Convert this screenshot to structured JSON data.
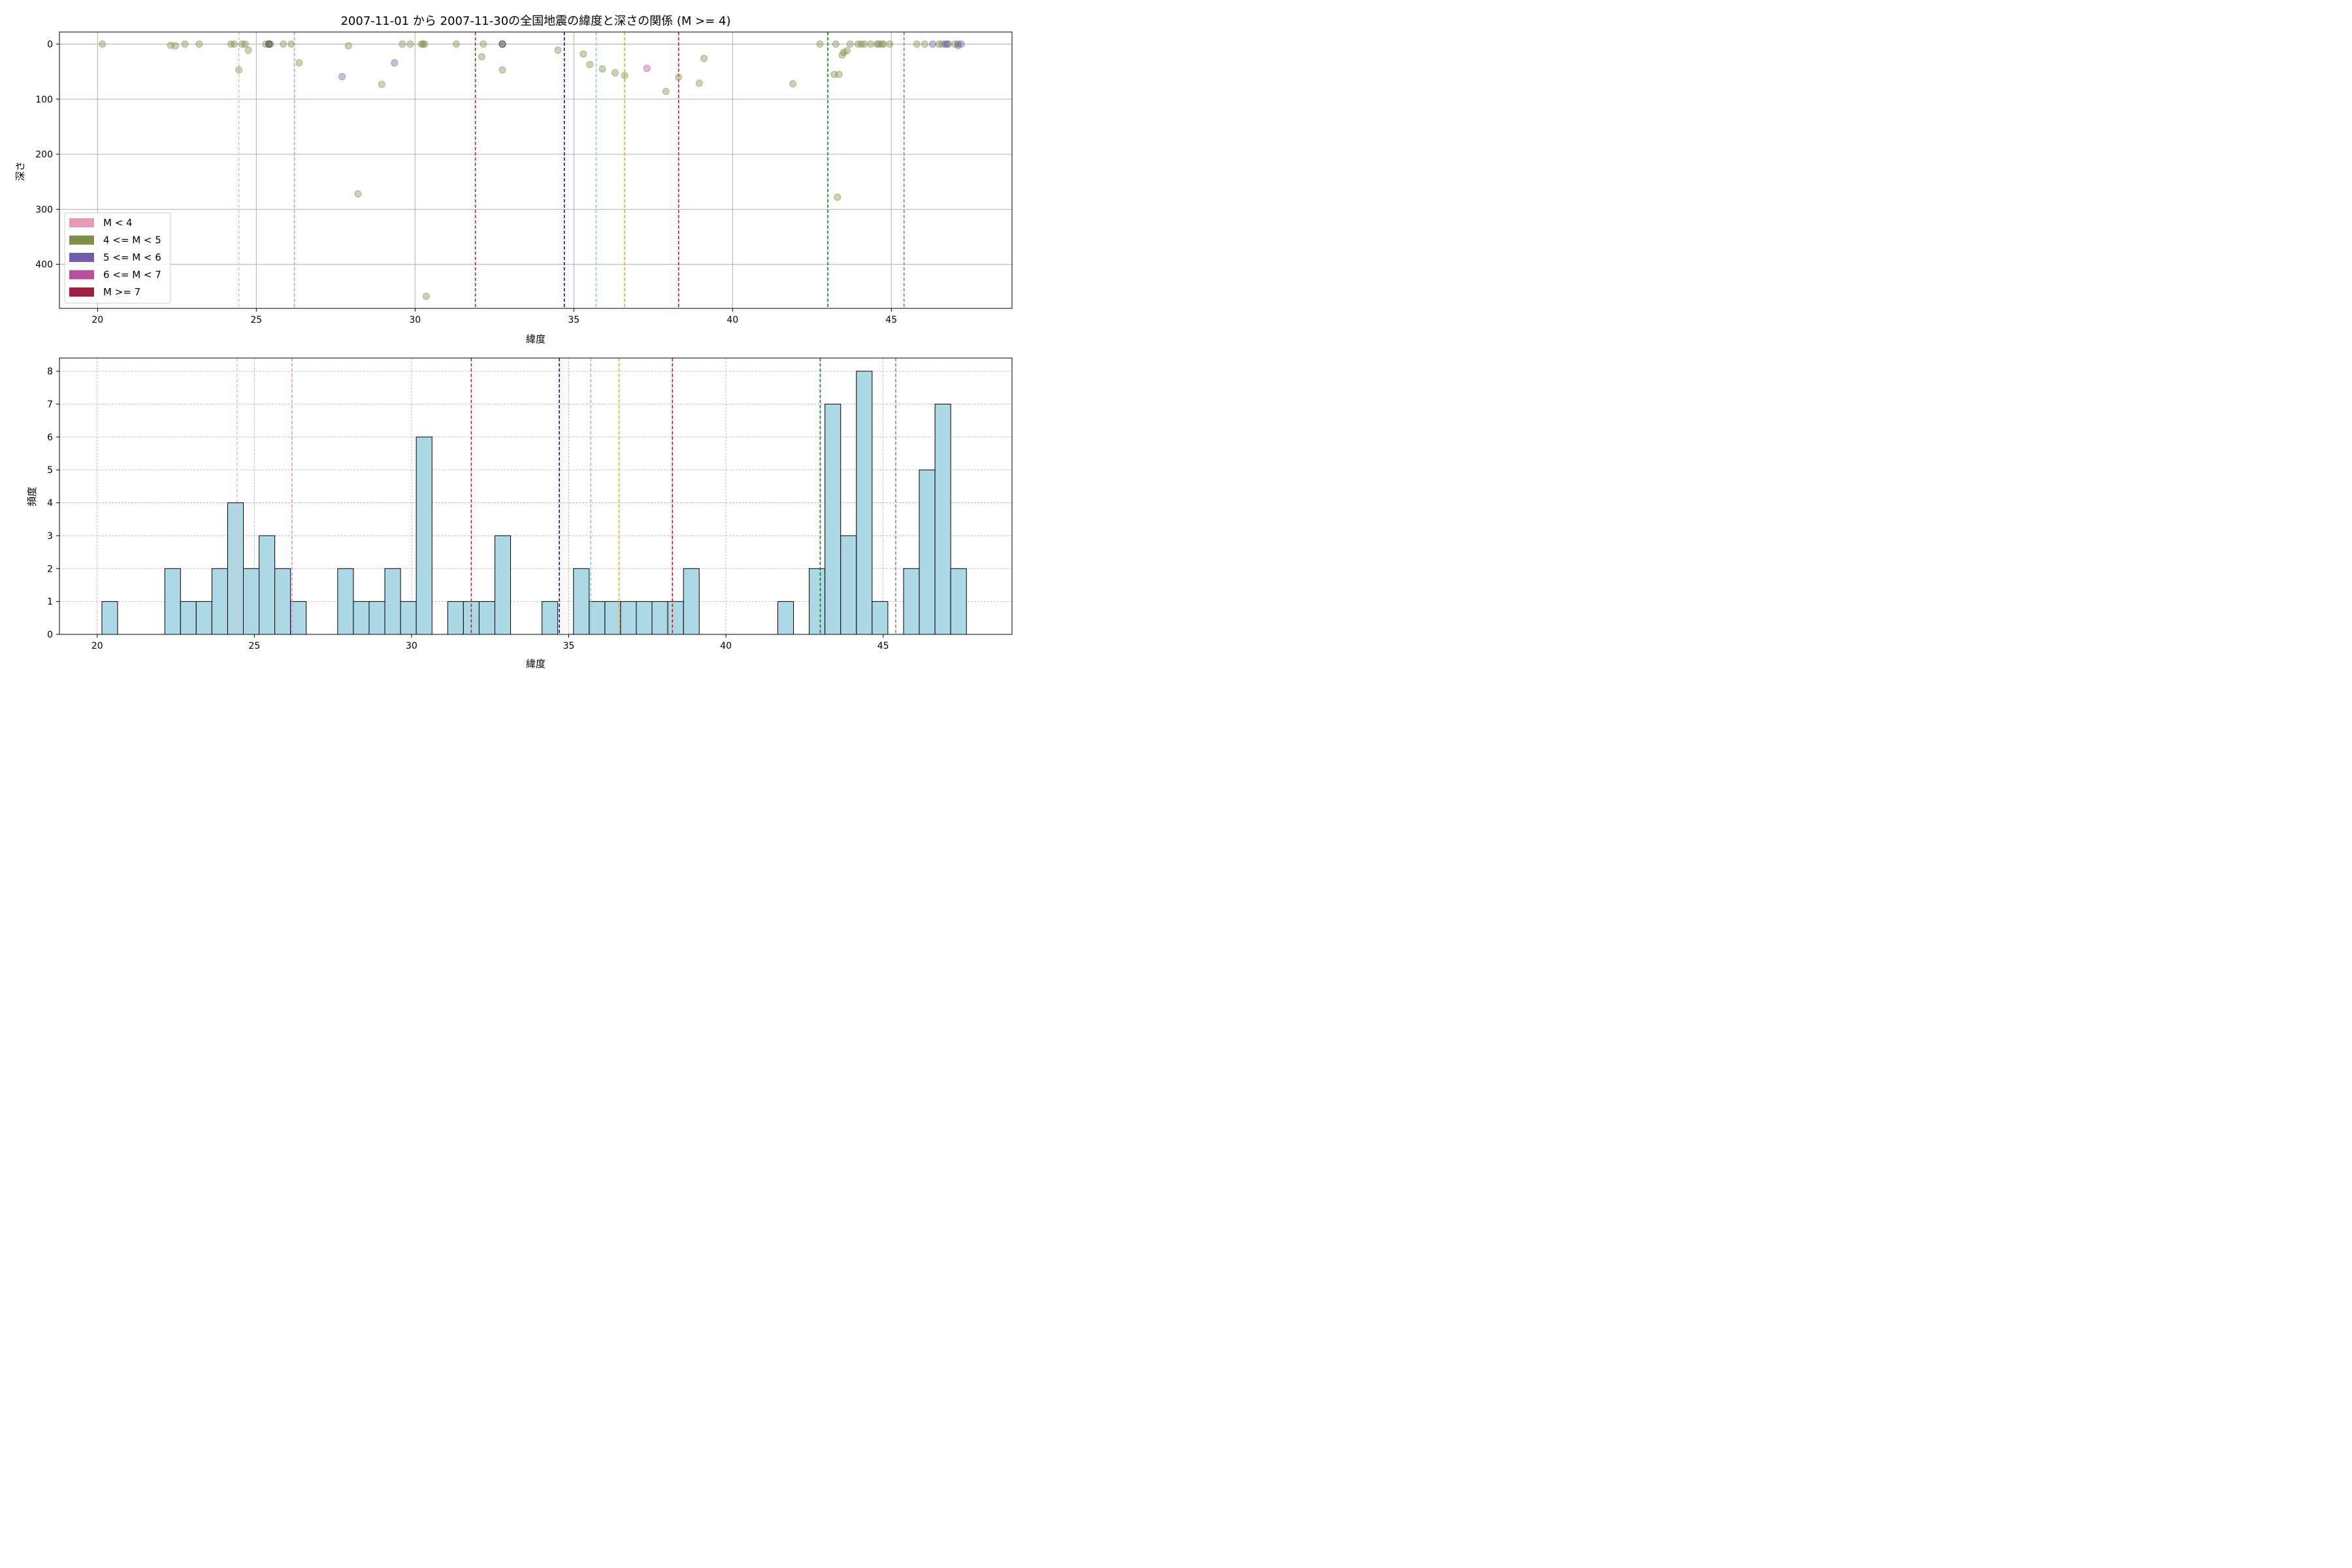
{
  "chart_data": [
    {
      "type": "scatter",
      "title": "2007-11-01 から 2007-11-30の全国地震の緯度と深さの関係 (M >= 4)",
      "xlabel": "緯度",
      "ylabel": "深さ",
      "xlim": [
        18.8,
        48.8
      ],
      "ylim": [
        480,
        -22
      ],
      "y_inverted": true,
      "xticks": [
        "20",
        "25",
        "30",
        "35",
        "40",
        "45"
      ],
      "yticks": [
        "0",
        "100",
        "200",
        "300",
        "400"
      ],
      "grid": true,
      "legend": {
        "placement": "lower-left",
        "entries": [
          {
            "label": "M < 4",
            "color": "#e899b4"
          },
          {
            "label": "4 <= M < 5",
            "color": "#7f8f46"
          },
          {
            "label": "5 <= M < 6",
            "color": "#735da8"
          },
          {
            "label": "6 <= M < 7",
            "color": "#b8509c"
          },
          {
            "label": "M >= 7",
            "color": "#a01f42"
          }
        ]
      },
      "reference_lines": [
        {
          "x": 24.45,
          "color": "#ffb6c1"
        },
        {
          "x": 26.2,
          "color": "#ee82ee"
        },
        {
          "x": 31.9,
          "color": "#a52a2a"
        },
        {
          "x": 34.7,
          "color": "#0000cd"
        },
        {
          "x": 35.7,
          "color": "#7fcce0"
        },
        {
          "x": 36.6,
          "color": "#ffa500"
        },
        {
          "x": 38.3,
          "color": "#ff0000"
        },
        {
          "x": 43.0,
          "color": "#008000"
        },
        {
          "x": 45.4,
          "color": "#808080"
        }
      ],
      "series": [
        {
          "category": "4 <= M < 5",
          "color": "#7f8f46",
          "points": [
            [
              20.15,
              0
            ],
            [
              22.3,
              2
            ],
            [
              22.45,
              3
            ],
            [
              22.75,
              0
            ],
            [
              23.2,
              0
            ],
            [
              24.2,
              0
            ],
            [
              24.3,
              0
            ],
            [
              24.45,
              47
            ],
            [
              24.55,
              0
            ],
            [
              24.65,
              0
            ],
            [
              24.75,
              11
            ],
            [
              25.3,
              0
            ],
            [
              25.45,
              0
            ],
            [
              25.85,
              0
            ],
            [
              26.1,
              0
            ],
            [
              26.35,
              34
            ],
            [
              27.9,
              3
            ],
            [
              28.2,
              272
            ],
            [
              28.95,
              73
            ],
            [
              29.6,
              0
            ],
            [
              29.85,
              0
            ],
            [
              30.2,
              0
            ],
            [
              30.25,
              0
            ],
            [
              30.3,
              0
            ],
            [
              30.35,
              458
            ],
            [
              31.3,
              0
            ],
            [
              32.1,
              23
            ],
            [
              32.15,
              0
            ],
            [
              32.75,
              47
            ],
            [
              34.5,
              11
            ],
            [
              35.3,
              18
            ],
            [
              35.5,
              37
            ],
            [
              35.9,
              45
            ],
            [
              36.3,
              52
            ],
            [
              36.6,
              57
            ],
            [
              37.9,
              86
            ],
            [
              38.3,
              60
            ],
            [
              38.95,
              71
            ],
            [
              39.1,
              26
            ],
            [
              41.9,
              72
            ],
            [
              42.75,
              0
            ],
            [
              43.2,
              55
            ],
            [
              43.25,
              0
            ],
            [
              43.3,
              278
            ],
            [
              43.35,
              55
            ],
            [
              43.45,
              20
            ],
            [
              43.5,
              15
            ],
            [
              43.6,
              12
            ],
            [
              43.7,
              0
            ],
            [
              43.95,
              0
            ],
            [
              44.05,
              0
            ],
            [
              44.15,
              0
            ],
            [
              44.35,
              0
            ],
            [
              44.55,
              0
            ],
            [
              44.6,
              0
            ],
            [
              44.7,
              0
            ],
            [
              44.75,
              0
            ],
            [
              44.95,
              0
            ],
            [
              45.8,
              0
            ],
            [
              46.05,
              0
            ],
            [
              46.5,
              0
            ],
            [
              46.6,
              0
            ],
            [
              46.8,
              0
            ],
            [
              47.0,
              0
            ],
            [
              47.1,
              3
            ]
          ]
        },
        {
          "category": "5 <= M < 6",
          "color": "#735da8",
          "points": [
            [
              27.7,
              59
            ],
            [
              29.35,
              34
            ],
            [
              46.3,
              0
            ],
            [
              46.7,
              0
            ],
            [
              46.75,
              0
            ],
            [
              47.1,
              0
            ],
            [
              47.2,
              0
            ]
          ]
        },
        {
          "category": "6 <= M < 7",
          "color": "#b8509c",
          "points": [
            [
              37.3,
              44
            ]
          ]
        }
      ],
      "overlap_points": [
        [
          25.4,
          0
        ],
        [
          32.75,
          0
        ]
      ]
    },
    {
      "type": "bar",
      "subtype": "histogram",
      "title": "",
      "xlabel": "緯度",
      "ylabel": "頻度",
      "xlim": [
        18.8,
        49.1
      ],
      "ylim": [
        0,
        8.4
      ],
      "xticks": [
        "20",
        "25",
        "30",
        "35",
        "40",
        "45"
      ],
      "yticks": [
        "0",
        "1",
        "2",
        "3",
        "4",
        "5",
        "6",
        "7",
        "8"
      ],
      "grid": true,
      "bar_color": "#add8e6",
      "bin_width": 0.5,
      "bins": [
        {
          "x0": 20.15,
          "count": 1
        },
        {
          "x0": 22.15,
          "count": 2
        },
        {
          "x0": 22.65,
          "count": 1
        },
        {
          "x0": 23.15,
          "count": 1
        },
        {
          "x0": 23.65,
          "count": 2
        },
        {
          "x0": 24.15,
          "count": 4
        },
        {
          "x0": 24.65,
          "count": 2
        },
        {
          "x0": 25.15,
          "count": 3
        },
        {
          "x0": 25.65,
          "count": 2
        },
        {
          "x0": 26.15,
          "count": 1
        },
        {
          "x0": 27.65,
          "count": 2
        },
        {
          "x0": 28.15,
          "count": 1
        },
        {
          "x0": 28.65,
          "count": 1
        },
        {
          "x0": 29.15,
          "count": 2
        },
        {
          "x0": 29.65,
          "count": 1
        },
        {
          "x0": 30.15,
          "count": 6
        },
        {
          "x0": 31.15,
          "count": 1
        },
        {
          "x0": 31.65,
          "count": 1
        },
        {
          "x0": 32.15,
          "count": 1
        },
        {
          "x0": 32.65,
          "count": 3
        },
        {
          "x0": 34.15,
          "count": 1
        },
        {
          "x0": 35.15,
          "count": 2
        },
        {
          "x0": 35.65,
          "count": 1
        },
        {
          "x0": 36.15,
          "count": 1
        },
        {
          "x0": 36.65,
          "count": 1
        },
        {
          "x0": 37.15,
          "count": 1
        },
        {
          "x0": 37.65,
          "count": 1
        },
        {
          "x0": 38.15,
          "count": 1
        },
        {
          "x0": 38.65,
          "count": 2
        },
        {
          "x0": 41.65,
          "count": 1
        },
        {
          "x0": 42.65,
          "count": 2
        },
        {
          "x0": 43.15,
          "count": 7
        },
        {
          "x0": 43.65,
          "count": 3
        },
        {
          "x0": 44.15,
          "count": 8
        },
        {
          "x0": 44.65,
          "count": 1
        },
        {
          "x0": 45.65,
          "count": 2
        },
        {
          "x0": 46.15,
          "count": 5
        },
        {
          "x0": 46.65,
          "count": 7
        },
        {
          "x0": 47.15,
          "count": 2
        }
      ],
      "reference_lines": [
        {
          "x": 24.45,
          "color": "#ffb6c1"
        },
        {
          "x": 26.2,
          "color": "#ee82ee"
        },
        {
          "x": 31.9,
          "color": "#a52a2a"
        },
        {
          "x": 34.7,
          "color": "#0000cd"
        },
        {
          "x": 35.7,
          "color": "#7fcce0"
        },
        {
          "x": 36.6,
          "color": "#ffa500"
        },
        {
          "x": 38.3,
          "color": "#ff0000"
        },
        {
          "x": 43.0,
          "color": "#008000"
        },
        {
          "x": 45.4,
          "color": "#808080"
        }
      ]
    }
  ]
}
